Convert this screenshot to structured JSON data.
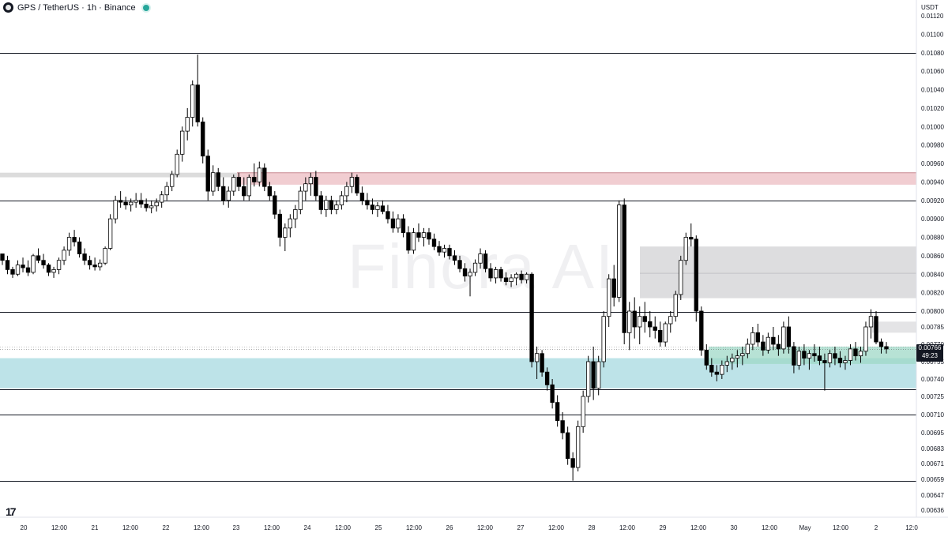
{
  "header": {
    "symbol": "GPS",
    "title": "GPS / TetherUS · 1h · Binance"
  },
  "currency_label": "USDT",
  "watermark": "Finora AI",
  "price_badge": {
    "price": "0.00766",
    "countdown": "49:23"
  },
  "colors": {
    "bull": "#ffffff",
    "bear": "#000000",
    "resistance_zone": "#f0c8cc",
    "supply_zone": "#d9d9dc",
    "demand_zone": "#b6e0e5",
    "green_zone": "#9fd8c7",
    "level_line": "#131722"
  },
  "chart_data": {
    "type": "candlestick",
    "timeframe": "1h",
    "y_tick_labels": [
      "0.01120",
      "0.01100",
      "0.01080",
      "0.01060",
      "0.01040",
      "0.01020",
      "0.01000",
      "0.00980",
      "0.00960",
      "0.00940",
      "0.00920",
      "0.00900",
      "0.00880",
      "0.00860",
      "0.00840",
      "0.00820",
      "0.00800",
      "0.00785",
      "0.00770",
      "0.00755",
      "0.00740",
      "0.00725",
      "0.00710",
      "0.00695",
      "0.00683",
      "0.00671",
      "0.00659",
      "0.00647",
      "0.00636"
    ],
    "x_tick_labels": [
      "20",
      "12:00",
      "21",
      "12:00",
      "22",
      "12:00",
      "23",
      "12:00",
      "24",
      "12:00",
      "25",
      "12:00",
      "26",
      "12:00",
      "27",
      "12:00",
      "28",
      "12:00",
      "29",
      "12:00",
      "30",
      "12:00",
      "May",
      "12:00",
      "2",
      "12:0"
    ],
    "levels": [
      0.0108,
      0.0092,
      0.00799,
      0.00731,
      0.0071,
      0.00658
    ],
    "zones": [
      {
        "type": "resistance",
        "from_date": "22 12:00",
        "top": 0.0095,
        "bottom": 0.00937
      },
      {
        "type": "supply",
        "from_date": "28 12:00",
        "top": 0.0087,
        "bottom": 0.00814
      },
      {
        "type": "demand",
        "from_date": "20",
        "top": 0.00758,
        "bottom": 0.00732
      },
      {
        "type": "green",
        "from_date": "29 12:00",
        "top": 0.00768,
        "bottom": 0.00753
      }
    ],
    "last_price": 0.00766,
    "candles": [
      [
        0.00862,
        0.00862,
        0.0085,
        0.00855
      ],
      [
        0.00855,
        0.0086,
        0.0084,
        0.00845
      ],
      [
        0.00845,
        0.00848,
        0.00836,
        0.0084
      ],
      [
        0.0084,
        0.00855,
        0.00838,
        0.0085
      ],
      [
        0.0085,
        0.00858,
        0.00842,
        0.00847
      ],
      [
        0.00847,
        0.00855,
        0.00838,
        0.00842
      ],
      [
        0.00842,
        0.00862,
        0.0084,
        0.0086
      ],
      [
        0.0086,
        0.00868,
        0.00852,
        0.00855
      ],
      [
        0.00855,
        0.00862,
        0.00846,
        0.0085
      ],
      [
        0.0085,
        0.00852,
        0.00838,
        0.00842
      ],
      [
        0.00842,
        0.00848,
        0.00836,
        0.00845
      ],
      [
        0.00845,
        0.00858,
        0.0084,
        0.00855
      ],
      [
        0.00855,
        0.0087,
        0.0085,
        0.00866
      ],
      [
        0.00866,
        0.00885,
        0.0086,
        0.0088
      ],
      [
        0.0088,
        0.00888,
        0.0087,
        0.00875
      ],
      [
        0.00875,
        0.0088,
        0.00858,
        0.00862
      ],
      [
        0.00862,
        0.00868,
        0.0085,
        0.00855
      ],
      [
        0.00855,
        0.0086,
        0.00845,
        0.0085
      ],
      [
        0.0085,
        0.00858,
        0.00844,
        0.00848
      ],
      [
        0.00848,
        0.00856,
        0.00844,
        0.00852
      ],
      [
        0.00852,
        0.0087,
        0.0085,
        0.00868
      ],
      [
        0.00868,
        0.00905,
        0.00866,
        0.009
      ],
      [
        0.009,
        0.00925,
        0.00895,
        0.0092
      ],
      [
        0.0092,
        0.0093,
        0.00912,
        0.00918
      ],
      [
        0.00918,
        0.00924,
        0.0091,
        0.00915
      ],
      [
        0.00915,
        0.00922,
        0.00908,
        0.00918
      ],
      [
        0.00918,
        0.00928,
        0.00912,
        0.0092
      ],
      [
        0.0092,
        0.00928,
        0.00912,
        0.00916
      ],
      [
        0.00916,
        0.00922,
        0.00908,
        0.00912
      ],
      [
        0.00912,
        0.0092,
        0.00906,
        0.00914
      ],
      [
        0.00914,
        0.00922,
        0.00908,
        0.00918
      ],
      [
        0.00918,
        0.0093,
        0.00912,
        0.00926
      ],
      [
        0.00926,
        0.0094,
        0.0092,
        0.00935
      ],
      [
        0.00935,
        0.00952,
        0.0093,
        0.00948
      ],
      [
        0.00948,
        0.00975,
        0.00945,
        0.0097
      ],
      [
        0.0097,
        0.01,
        0.00962,
        0.00995
      ],
      [
        0.00995,
        0.0102,
        0.00985,
        0.0101
      ],
      [
        0.0101,
        0.0105,
        0.01,
        0.01045
      ],
      [
        0.01045,
        0.01078,
        0.01,
        0.01005
      ],
      [
        0.01005,
        0.0101,
        0.0096,
        0.00968
      ],
      [
        0.00968,
        0.00975,
        0.0092,
        0.0093
      ],
      [
        0.0093,
        0.00958,
        0.00925,
        0.0095
      ],
      [
        0.0095,
        0.00955,
        0.0093,
        0.00935
      ],
      [
        0.00935,
        0.00945,
        0.00915,
        0.0092
      ],
      [
        0.0092,
        0.00935,
        0.00912,
        0.0093
      ],
      [
        0.0093,
        0.00948,
        0.00925,
        0.00945
      ],
      [
        0.00945,
        0.0095,
        0.0093,
        0.00935
      ],
      [
        0.00935,
        0.00945,
        0.0092,
        0.00925
      ],
      [
        0.00925,
        0.00948,
        0.0092,
        0.00945
      ],
      [
        0.00945,
        0.0096,
        0.00935,
        0.0094
      ],
      [
        0.0094,
        0.00962,
        0.00935,
        0.00955
      ],
      [
        0.00955,
        0.0096,
        0.0093,
        0.00935
      ],
      [
        0.00935,
        0.0094,
        0.0092,
        0.00925
      ],
      [
        0.00925,
        0.0093,
        0.009,
        0.00905
      ],
      [
        0.00905,
        0.0091,
        0.0087,
        0.0088
      ],
      [
        0.0088,
        0.00895,
        0.00865,
        0.0089
      ],
      [
        0.0089,
        0.00905,
        0.0088,
        0.009
      ],
      [
        0.009,
        0.00915,
        0.0089,
        0.0091
      ],
      [
        0.0091,
        0.00935,
        0.00905,
        0.0093
      ],
      [
        0.0093,
        0.00945,
        0.0092,
        0.00938
      ],
      [
        0.00938,
        0.0095,
        0.00925,
        0.00945
      ],
      [
        0.00945,
        0.00952,
        0.0092,
        0.00925
      ],
      [
        0.00925,
        0.0093,
        0.00905,
        0.0091
      ],
      [
        0.0091,
        0.00925,
        0.00902,
        0.0092
      ],
      [
        0.0092,
        0.00925,
        0.00905,
        0.0091
      ],
      [
        0.0091,
        0.0092,
        0.00905,
        0.00915
      ],
      [
        0.00915,
        0.0093,
        0.0091,
        0.00925
      ],
      [
        0.00925,
        0.0094,
        0.00918,
        0.00935
      ],
      [
        0.00935,
        0.0095,
        0.00928,
        0.00945
      ],
      [
        0.00945,
        0.00948,
        0.00925,
        0.00928
      ],
      [
        0.00928,
        0.00935,
        0.00915,
        0.0092
      ],
      [
        0.0092,
        0.00928,
        0.0091,
        0.00915
      ],
      [
        0.00915,
        0.00922,
        0.00905,
        0.0091
      ],
      [
        0.0091,
        0.00918,
        0.00902,
        0.00914
      ],
      [
        0.00914,
        0.0092,
        0.00905,
        0.00908
      ],
      [
        0.00908,
        0.00915,
        0.00895,
        0.009
      ],
      [
        0.009,
        0.00908,
        0.00885,
        0.0089
      ],
      [
        0.0089,
        0.00905,
        0.00885,
        0.009
      ],
      [
        0.009,
        0.00905,
        0.0088,
        0.00885
      ],
      [
        0.00885,
        0.00892,
        0.00862,
        0.00866
      ],
      [
        0.00866,
        0.0089,
        0.00862,
        0.00885
      ],
      [
        0.00885,
        0.00895,
        0.00875,
        0.0088
      ],
      [
        0.0088,
        0.0089,
        0.0087,
        0.00885
      ],
      [
        0.00885,
        0.0089,
        0.00872,
        0.00878
      ],
      [
        0.00878,
        0.00884,
        0.00866,
        0.0087
      ],
      [
        0.0087,
        0.00876,
        0.0086,
        0.00864
      ],
      [
        0.00864,
        0.00872,
        0.00858,
        0.00868
      ],
      [
        0.00868,
        0.00872,
        0.00856,
        0.0086
      ],
      [
        0.0086,
        0.00866,
        0.0085,
        0.00855
      ],
      [
        0.00855,
        0.0086,
        0.00842,
        0.00846
      ],
      [
        0.00846,
        0.00852,
        0.00832,
        0.00838
      ],
      [
        0.00838,
        0.00846,
        0.00816,
        0.00842
      ],
      [
        0.00842,
        0.00856,
        0.00838,
        0.00852
      ],
      [
        0.00852,
        0.00868,
        0.00846,
        0.00862
      ],
      [
        0.00862,
        0.00866,
        0.00842,
        0.00846
      ],
      [
        0.00846,
        0.00852,
        0.00832,
        0.00836
      ],
      [
        0.00836,
        0.00848,
        0.0083,
        0.00845
      ],
      [
        0.00845,
        0.00848,
        0.00832,
        0.00836
      ],
      [
        0.00836,
        0.00842,
        0.00828,
        0.00832
      ],
      [
        0.00832,
        0.0084,
        0.00826,
        0.00836
      ],
      [
        0.00836,
        0.00842,
        0.00828,
        0.0084
      ],
      [
        0.0084,
        0.00844,
        0.0083,
        0.00834
      ],
      [
        0.00834,
        0.00842,
        0.0083,
        0.0084
      ],
      [
        0.0084,
        0.00842,
        0.0075,
        0.00755
      ],
      [
        0.00755,
        0.00768,
        0.0074,
        0.00762
      ],
      [
        0.00762,
        0.00765,
        0.00742,
        0.00746
      ],
      [
        0.00746,
        0.0075,
        0.0073,
        0.00735
      ],
      [
        0.00735,
        0.0074,
        0.00715,
        0.0072
      ],
      [
        0.0072,
        0.00726,
        0.007,
        0.00705
      ],
      [
        0.00705,
        0.00712,
        0.0069,
        0.00695
      ],
      [
        0.00695,
        0.007,
        0.0067,
        0.00675
      ],
      [
        0.00675,
        0.0068,
        0.00658,
        0.00668
      ],
      [
        0.00668,
        0.00705,
        0.00665,
        0.007
      ],
      [
        0.007,
        0.0073,
        0.00695,
        0.00725
      ],
      [
        0.00725,
        0.0076,
        0.0072,
        0.00755
      ],
      [
        0.00755,
        0.00768,
        0.00722,
        0.00732
      ],
      [
        0.00732,
        0.0076,
        0.00726,
        0.00755
      ],
      [
        0.00755,
        0.008,
        0.0075,
        0.00795
      ],
      [
        0.00795,
        0.0084,
        0.00785,
        0.00835
      ],
      [
        0.00835,
        0.0085,
        0.00805,
        0.00815
      ],
      [
        0.00815,
        0.0092,
        0.0081,
        0.00915
      ],
      [
        0.00915,
        0.00922,
        0.0077,
        0.0078
      ],
      [
        0.0078,
        0.0081,
        0.00765,
        0.008
      ],
      [
        0.008,
        0.00815,
        0.00775,
        0.00785
      ],
      [
        0.00785,
        0.00805,
        0.0077,
        0.00795
      ],
      [
        0.00795,
        0.0081,
        0.0078,
        0.0079
      ],
      [
        0.0079,
        0.008,
        0.00776,
        0.00785
      ],
      [
        0.00785,
        0.00795,
        0.00775,
        0.00782
      ],
      [
        0.00782,
        0.0079,
        0.00768,
        0.00772
      ],
      [
        0.00772,
        0.0079,
        0.00768,
        0.00788
      ],
      [
        0.00788,
        0.008,
        0.0078,
        0.00795
      ],
      [
        0.00795,
        0.00822,
        0.0079,
        0.00818
      ],
      [
        0.00818,
        0.0086,
        0.00812,
        0.00855
      ],
      [
        0.00855,
        0.00885,
        0.0085,
        0.0088
      ],
      [
        0.0088,
        0.00895,
        0.0087,
        0.00878
      ],
      [
        0.00878,
        0.00882,
        0.0079,
        0.008
      ],
      [
        0.008,
        0.00805,
        0.0076,
        0.00765
      ],
      [
        0.00765,
        0.0077,
        0.00748,
        0.00752
      ],
      [
        0.00752,
        0.00758,
        0.00742,
        0.00746
      ],
      [
        0.00746,
        0.00752,
        0.00738,
        0.00744
      ],
      [
        0.00744,
        0.00756,
        0.0074,
        0.00752
      ],
      [
        0.00752,
        0.0076,
        0.00746,
        0.00755
      ],
      [
        0.00755,
        0.00762,
        0.00748,
        0.00758
      ],
      [
        0.00758,
        0.00765,
        0.0075,
        0.0076
      ],
      [
        0.0076,
        0.00768,
        0.00752,
        0.00762
      ],
      [
        0.00762,
        0.00775,
        0.00758,
        0.0077
      ],
      [
        0.0077,
        0.00785,
        0.00765,
        0.0078
      ],
      [
        0.0078,
        0.00788,
        0.00768,
        0.00772
      ],
      [
        0.00772,
        0.00778,
        0.0076,
        0.00765
      ],
      [
        0.00765,
        0.0078,
        0.00762,
        0.00776
      ],
      [
        0.00776,
        0.00785,
        0.00765,
        0.0077
      ],
      [
        0.0077,
        0.00778,
        0.0076,
        0.00766
      ],
      [
        0.00766,
        0.0079,
        0.00762,
        0.00785
      ],
      [
        0.00785,
        0.00795,
        0.00762,
        0.00768
      ],
      [
        0.00768,
        0.00772,
        0.00745,
        0.00752
      ],
      [
        0.00752,
        0.00768,
        0.00748,
        0.00764
      ],
      [
        0.00764,
        0.0077,
        0.00752,
        0.00758
      ],
      [
        0.00758,
        0.00765,
        0.00748,
        0.00762
      ],
      [
        0.00762,
        0.0077,
        0.00755,
        0.0076
      ],
      [
        0.0076,
        0.00768,
        0.00752,
        0.00756
      ],
      [
        0.00756,
        0.00762,
        0.0073,
        0.00754
      ],
      [
        0.00754,
        0.00765,
        0.0075,
        0.00762
      ],
      [
        0.00762,
        0.00768,
        0.00752,
        0.00758
      ],
      [
        0.00758,
        0.00764,
        0.0075,
        0.00754
      ],
      [
        0.00754,
        0.0076,
        0.00748,
        0.00756
      ],
      [
        0.00756,
        0.0077,
        0.00752,
        0.00766
      ],
      [
        0.00766,
        0.00772,
        0.00756,
        0.0076
      ],
      [
        0.0076,
        0.00768,
        0.00754,
        0.00764
      ],
      [
        0.00764,
        0.0079,
        0.0076,
        0.00785
      ],
      [
        0.00785,
        0.00802,
        0.00775,
        0.00795
      ],
      [
        0.00795,
        0.008,
        0.0077,
        0.00772
      ],
      [
        0.00772,
        0.00775,
        0.00762,
        0.00768
      ],
      [
        0.00768,
        0.00772,
        0.00762,
        0.00766
      ]
    ]
  },
  "x_axis_date_labels": [
    {
      "label": "20"
    },
    {
      "label": "12:00"
    },
    {
      "label": "21"
    },
    {
      "label": "12:00"
    },
    {
      "label": "22"
    },
    {
      "label": "12:00"
    },
    {
      "label": "23"
    },
    {
      "label": "12:00"
    },
    {
      "label": "24"
    },
    {
      "label": "12:00"
    },
    {
      "label": "25"
    },
    {
      "label": "12:00"
    },
    {
      "label": "26"
    },
    {
      "label": "12:00"
    },
    {
      "label": "27"
    },
    {
      "label": "12:00"
    },
    {
      "label": "28"
    },
    {
      "label": "12:00"
    },
    {
      "label": "29"
    },
    {
      "label": "12:00"
    },
    {
      "label": "30"
    },
    {
      "label": "12:00"
    },
    {
      "label": "May"
    },
    {
      "label": "12:00"
    },
    {
      "label": "2"
    },
    {
      "label": "12:0"
    }
  ]
}
